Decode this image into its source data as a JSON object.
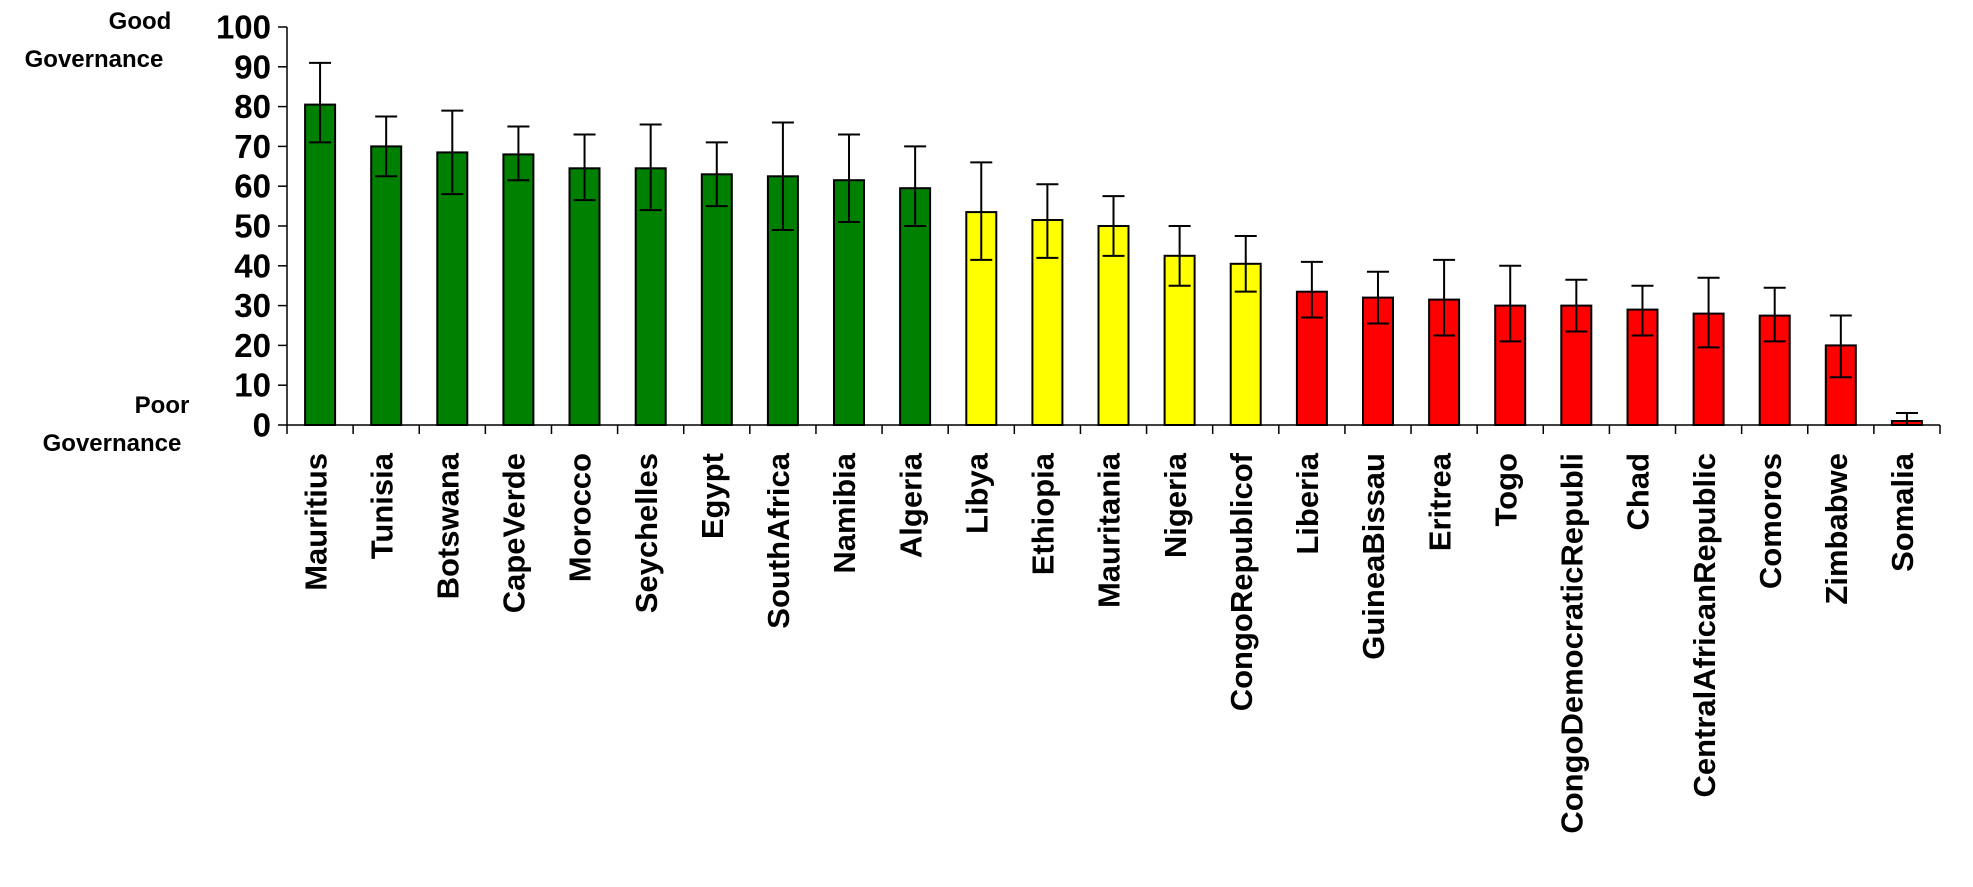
{
  "annotations": {
    "top_line1": "Good",
    "top_line2": "Governance",
    "bottom_line1": "Poor",
    "bottom_line2": "Governance"
  },
  "colors": {
    "high": "#008000",
    "mid": "#ffff00",
    "low": "#ff0000",
    "outline": "#000000"
  },
  "chart_data": {
    "type": "bar",
    "title": "",
    "xlabel": "",
    "ylabel": "",
    "ylim": [
      0,
      100
    ],
    "yticks": [
      0,
      10,
      20,
      30,
      40,
      50,
      60,
      70,
      80,
      90,
      100
    ],
    "grid": false,
    "legend": "none",
    "error_bars": true,
    "categories": [
      "Mauritius",
      "Tunisia",
      "Botswana",
      "CapeVerde",
      "Morocco",
      "Seychelles",
      "Egypt",
      "SouthAfrica",
      "Namibia",
      "Algeria",
      "Libya",
      "Ethiopia",
      "Mauritania",
      "Nigeria",
      "CongoRepublicof",
      "Liberia",
      "GuineaBissau",
      "Eritrea",
      "Togo",
      "CongoDemocraticRepubli",
      "Chad",
      "CentralAfricanRepublic",
      "Comoros",
      "Zimbabwe",
      "Somalia"
    ],
    "values": [
      80.5,
      70,
      68.5,
      68,
      64.5,
      64.5,
      63,
      62.5,
      61.5,
      59.5,
      53.5,
      51.5,
      50,
      42.5,
      40.5,
      33.5,
      32,
      31.5,
      30,
      30,
      29,
      28,
      27.5,
      20,
      1
    ],
    "error_low": [
      71,
      62.5,
      58,
      61.5,
      56.5,
      54,
      55,
      49,
      51,
      50,
      41.5,
      42,
      42.5,
      35,
      33.5,
      27,
      25.5,
      22.5,
      21,
      23.5,
      22.5,
      19.5,
      21,
      12,
      0
    ],
    "error_high": [
      91,
      77.5,
      79,
      75,
      73,
      75.5,
      71,
      76,
      73,
      70,
      66,
      60.5,
      57.5,
      50,
      47.5,
      41,
      38.5,
      41.5,
      40,
      36.5,
      35,
      37,
      34.5,
      27.5,
      3
    ],
    "color_groups": [
      "high",
      "high",
      "high",
      "high",
      "high",
      "high",
      "high",
      "high",
      "high",
      "high",
      "mid",
      "mid",
      "mid",
      "mid",
      "mid",
      "low",
      "low",
      "low",
      "low",
      "low",
      "low",
      "low",
      "low",
      "low",
      "low"
    ]
  }
}
